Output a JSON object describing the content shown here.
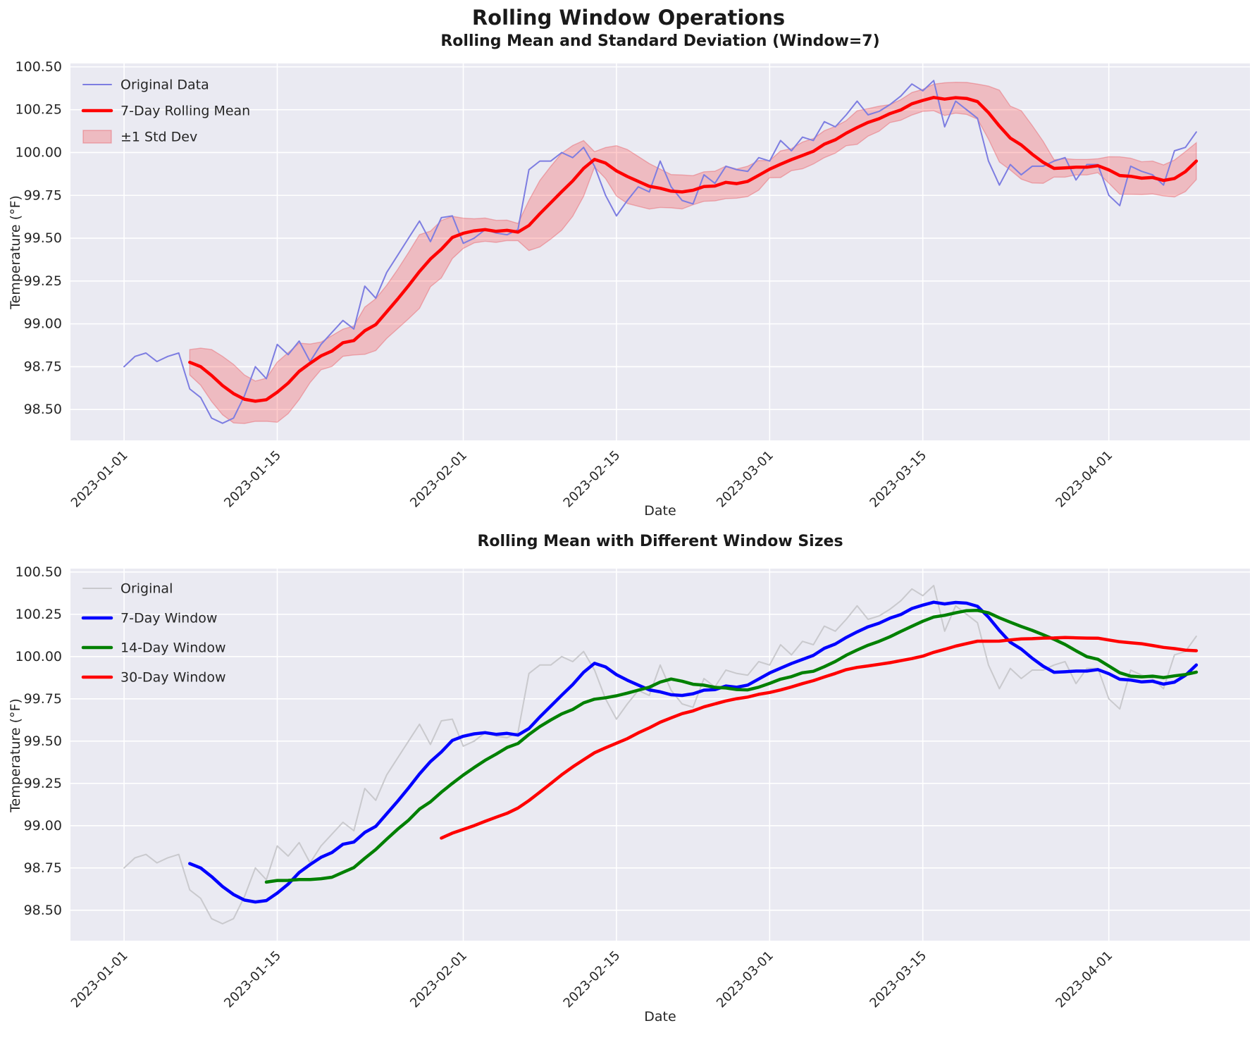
{
  "title": "Rolling Window Operations",
  "colors": {
    "figure_bg": "#ffffff",
    "axes_bg": "#eaeaf2",
    "grid": "#ffffff",
    "tick_text": "#262626",
    "original_blue": "#7d7de1",
    "rolling_red": "#ff0000",
    "band_fill": "rgba(255,0,0,0.20)",
    "band_edge": "rgba(230,40,50,0.30)",
    "original_gray": "#c9c9cd",
    "window7_blue": "#0000ff",
    "window14_green": "#008000",
    "window30_red": "#ff0000"
  },
  "temperature_values": [
    98.75,
    98.81,
    98.83,
    98.78,
    98.81,
    98.83,
    98.62,
    98.57,
    98.45,
    98.42,
    98.45,
    98.58,
    98.75,
    98.68,
    98.88,
    98.82,
    98.9,
    98.78,
    98.88,
    98.95,
    99.02,
    98.97,
    99.22,
    99.15,
    99.3,
    99.4,
    99.5,
    99.6,
    99.48,
    99.62,
    99.63,
    99.47,
    99.5,
    99.55,
    99.53,
    99.52,
    99.55,
    99.9,
    99.95,
    99.95,
    100.0,
    99.97,
    100.03,
    99.92,
    99.75,
    99.63,
    99.72,
    99.8,
    99.77,
    99.95,
    99.8,
    99.72,
    99.7,
    99.87,
    99.82,
    99.92,
    99.9,
    99.89,
    99.97,
    99.95,
    100.07,
    100.01,
    100.09,
    100.07,
    100.18,
    100.15,
    100.22,
    100.3,
    100.22,
    100.24,
    100.28,
    100.33,
    100.4,
    100.36,
    100.42,
    100.15,
    100.3,
    100.25,
    100.2,
    99.95,
    99.81,
    99.93,
    99.87,
    99.92,
    99.92,
    99.95,
    99.97,
    99.84,
    99.93,
    99.93,
    99.75,
    99.69,
    99.92,
    99.89,
    99.87,
    99.81,
    100.01,
    100.03,
    100.12
  ],
  "chart_data": [
    {
      "type": "line",
      "title": "Rolling Mean and Standard Deviation (Window=7)",
      "xlabel": "Date",
      "ylabel": "Temperature (°F)",
      "start_date": "2023-01-01",
      "x_tick_days": [
        0,
        14,
        31,
        45,
        59,
        73,
        90
      ],
      "x_tick_labels": [
        "2023-01-01",
        "2023-01-15",
        "2023-02-01",
        "2023-02-15",
        "2023-03-01",
        "2023-03-15",
        "2023-04-01"
      ],
      "x_tick_rotation": 45,
      "y_ticks": [
        98.5,
        98.75,
        99.0,
        99.25,
        99.5,
        99.75,
        100.0,
        100.25,
        100.5
      ],
      "ylim": [
        98.32,
        100.52
      ],
      "x_margin_days": 4.9,
      "grid": true,
      "legend_location": "upper left",
      "series": [
        {
          "label": "Original Data",
          "kind": "raw",
          "colorKey": "original_blue",
          "width": 2
        },
        {
          "label": "7-Day Rolling Mean",
          "kind": "rolling_mean",
          "window": 7,
          "colorKey": "rolling_red",
          "width": 4.5
        },
        {
          "label": "±1 Std Dev",
          "kind": "std_band",
          "window": 7,
          "fillKey": "band_fill",
          "edgeKey": "band_edge"
        }
      ]
    },
    {
      "type": "line",
      "title": "Rolling Mean with Different Window Sizes",
      "xlabel": "Date",
      "ylabel": "Temperature (°F)",
      "start_date": "2023-01-01",
      "x_tick_days": [
        0,
        14,
        31,
        45,
        59,
        73,
        90
      ],
      "x_tick_labels": [
        "2023-01-01",
        "2023-01-15",
        "2023-02-01",
        "2023-02-15",
        "2023-03-01",
        "2023-03-15",
        "2023-04-01"
      ],
      "x_tick_rotation": 45,
      "y_ticks": [
        98.5,
        98.75,
        99.0,
        99.25,
        99.5,
        99.75,
        100.0,
        100.25,
        100.5
      ],
      "ylim": [
        98.32,
        100.52
      ],
      "x_margin_days": 4.9,
      "grid": true,
      "legend_location": "upper left",
      "series": [
        {
          "label": "Original",
          "kind": "raw",
          "colorKey": "original_gray",
          "width": 2
        },
        {
          "label": "7-Day Window",
          "kind": "rolling_mean",
          "window": 7,
          "colorKey": "window7_blue",
          "width": 4.5
        },
        {
          "label": "14-Day Window",
          "kind": "rolling_mean",
          "window": 14,
          "colorKey": "window14_green",
          "width": 4.5
        },
        {
          "label": "30-Day Window",
          "kind": "rolling_mean",
          "window": 30,
          "colorKey": "window30_red",
          "width": 4.5
        }
      ]
    }
  ]
}
